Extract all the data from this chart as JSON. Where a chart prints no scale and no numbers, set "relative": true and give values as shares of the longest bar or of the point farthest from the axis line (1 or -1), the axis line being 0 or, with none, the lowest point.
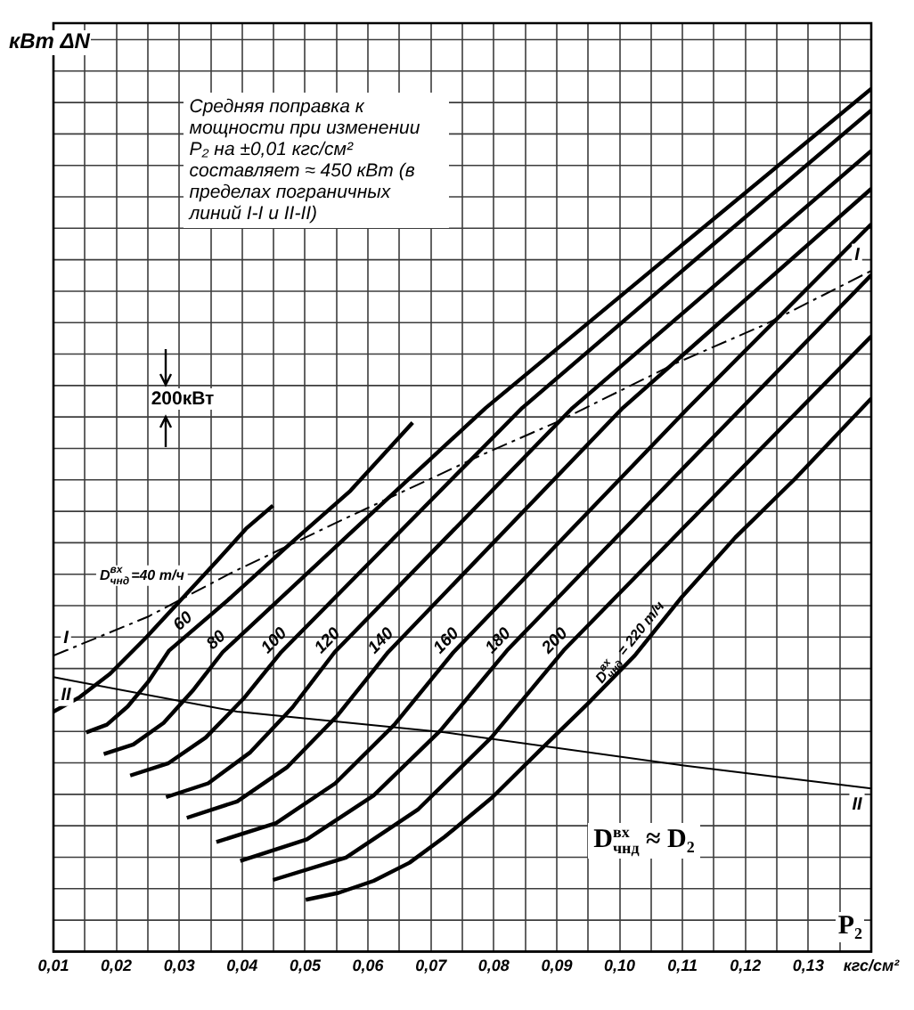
{
  "chart_data": {
    "type": "line",
    "xlabel": "P₂",
    "ylabel": "кВт ΔN",
    "annotations": [
      "Средняя поправка к мощности при изменении P₂ на ±0,01 кгс/см² составляет ≈ 450 кВт (в пределах пограничных линий I-I и II-II)",
      "200кВт",
      "D$^{вх}$$_{чнд}$ ≈ D₂"
    ],
    "xlim": [
      0.01,
      0.14
    ],
    "xticks": [
      {
        "value": 0.01,
        "label": "0,01"
      },
      {
        "value": 0.015,
        "label": null
      },
      {
        "value": 0.02,
        "label": "0,02"
      },
      {
        "value": 0.025,
        "label": null
      },
      {
        "value": 0.03,
        "label": "0,03"
      },
      {
        "value": 0.035,
        "label": null
      },
      {
        "value": 0.04,
        "label": "0,04"
      },
      {
        "value": 0.045,
        "label": null
      },
      {
        "value": 0.05,
        "label": "0,05"
      },
      {
        "value": 0.055,
        "label": null
      },
      {
        "value": 0.06,
        "label": "0,06"
      },
      {
        "value": 0.065,
        "label": null
      },
      {
        "value": 0.07,
        "label": "0,07"
      },
      {
        "value": 0.075,
        "label": null
      },
      {
        "value": 0.08,
        "label": "0,08"
      },
      {
        "value": 0.085,
        "label": null
      },
      {
        "value": 0.09,
        "label": "0,09"
      },
      {
        "value": 0.095,
        "label": null
      },
      {
        "value": 0.1,
        "label": "0,10"
      },
      {
        "value": 0.105,
        "label": null
      },
      {
        "value": 0.11,
        "label": "0,11"
      },
      {
        "value": 0.115,
        "label": null
      },
      {
        "value": 0.12,
        "label": "0,12"
      },
      {
        "value": 0.125,
        "label": null
      },
      {
        "value": 0.13,
        "label": "0,13"
      },
      {
        "value": 0.135,
        "label": null
      },
      {
        "value": 0.14,
        "label": "кгс/см²"
      }
    ],
    "relative": true,
    "grid": true,
    "legend": false,
    "marker": "none",
    "series": [
      {
        "name": "D$^{вх}$$_{чнд}$=40 т/ч",
        "color": "#000000",
        "x": [
          0.01,
          0.0142,
          0.019,
          0.0246,
          0.0303,
          0.0359,
          0.0406,
          0.0449
        ],
        "values": [
          0.278,
          0.295,
          0.322,
          0.363,
          0.408,
          0.452,
          0.49,
          0.517
        ]
      },
      {
        "name": "60",
        "color": "#000000",
        "x": [
          0.0152,
          0.0185,
          0.0218,
          0.0251,
          0.0284,
          0.0383,
          0.0477,
          0.0572,
          0.0671
        ],
        "values": [
          0.254,
          0.263,
          0.284,
          0.313,
          0.349,
          0.411,
          0.473,
          0.534,
          0.613
        ]
      },
      {
        "name": "80",
        "color": "#000000",
        "x": [
          0.018,
          0.0227,
          0.0275,
          0.0321,
          0.0369,
          0.0578,
          0.0787,
          0.1093,
          0.14
        ],
        "values": [
          0.229,
          0.24,
          0.265,
          0.302,
          0.347,
          0.489,
          0.63,
          0.815,
          1.0
        ]
      },
      {
        "name": "100",
        "color": "#000000",
        "x": [
          0.0222,
          0.0282,
          0.0342,
          0.0402,
          0.0462,
          0.0845,
          0.1122,
          0.14
        ],
        "values": [
          0.204,
          0.218,
          0.248,
          0.293,
          0.347,
          0.63,
          0.803,
          0.975
        ]
      },
      {
        "name": "120",
        "color": "#000000",
        "x": [
          0.0279,
          0.0346,
          0.0413,
          0.048,
          0.0547,
          0.0925,
          0.14
        ],
        "values": [
          0.179,
          0.195,
          0.231,
          0.283,
          0.347,
          0.63,
          0.928
        ]
      },
      {
        "name": "140",
        "color": "#000000",
        "x": [
          0.0312,
          0.0392,
          0.0472,
          0.0552,
          0.0632,
          0.1005,
          0.14
        ],
        "values": [
          0.155,
          0.174,
          0.214,
          0.274,
          0.347,
          0.63,
          0.884
        ]
      },
      {
        "name": "160",
        "color": "#000000",
        "x": [
          0.0359,
          0.0454,
          0.0548,
          0.0642,
          0.0736,
          0.1109,
          0.14
        ],
        "values": [
          0.127,
          0.149,
          0.195,
          0.263,
          0.347,
          0.63,
          0.843
        ]
      },
      {
        "name": "180",
        "color": "#000000",
        "x": [
          0.0397,
          0.0503,
          0.0609,
          0.0715,
          0.0821,
          0.111,
          0.14
        ],
        "values": [
          0.105,
          0.13,
          0.181,
          0.256,
          0.349,
          0.567,
          0.784
        ]
      },
      {
        "name": "200",
        "color": "#000000",
        "x": [
          0.0449,
          0.0565,
          0.068,
          0.0796,
          0.0911,
          0.1155,
          0.14
        ],
        "values": [
          0.083,
          0.109,
          0.165,
          0.248,
          0.349,
          0.531,
          0.713
        ]
      },
      {
        "name": "D$^{вх}$$_{чнд}$ = 220 т/ч",
        "color": "#000000",
        "x": [
          0.0501,
          0.0553,
          0.0609,
          0.0666,
          0.0722,
          0.0798,
          0.0873,
          0.0949,
          0.1024,
          0.1099,
          0.1184,
          0.1279,
          0.14
        ],
        "values": [
          0.06,
          0.068,
          0.082,
          0.103,
          0.133,
          0.179,
          0.233,
          0.287,
          0.343,
          0.411,
          0.48,
          0.548,
          0.641
        ]
      },
      {
        "name": "I",
        "color": "#000000",
        "line_style": "dashed",
        "x": [
          0.01,
          0.025,
          0.0383,
          0.0561,
          0.0779,
          0.0901,
          0.109,
          0.1232,
          0.14
        ],
        "values": [
          0.343,
          0.388,
          0.439,
          0.501,
          0.575,
          0.614,
          0.682,
          0.727,
          0.789
        ]
      },
      {
        "name": "II",
        "color": "#000000",
        "line_style": "solid",
        "x": [
          0.01,
          0.0392,
          0.0722,
          0.1099,
          0.14
        ],
        "values": [
          0.318,
          0.278,
          0.254,
          0.216,
          0.189
        ]
      }
    ]
  }
}
